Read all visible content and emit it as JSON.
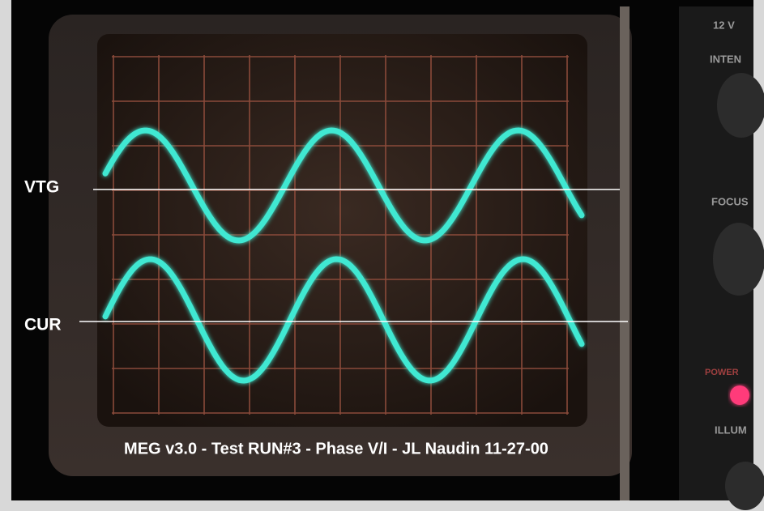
{
  "labels": {
    "voltage": "VTG",
    "current": "CUR"
  },
  "caption": "MEG v3.0 - Test RUN#3 - Phase V/I -  JL Naudin 11-27-00",
  "panel": {
    "top": "12 V",
    "intensity": "INTEN",
    "focus": "FOCUS",
    "power": "POWER",
    "illum": "ILLUM"
  }
}
